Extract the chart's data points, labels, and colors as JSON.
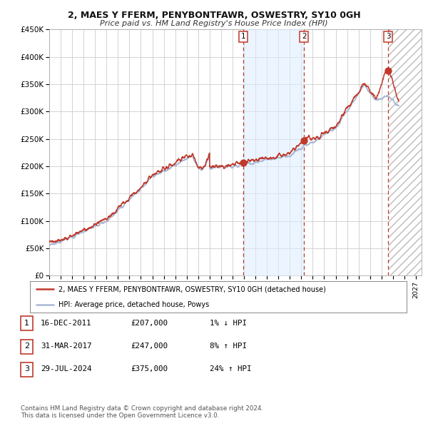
{
  "title": "2, MAES Y FFERM, PENYBONTFAWR, OSWESTRY, SY10 0GH",
  "subtitle": "Price paid vs. HM Land Registry's House Price Index (HPI)",
  "bg_color": "#ffffff",
  "plot_bg_color": "#ffffff",
  "grid_color": "#cccccc",
  "hpi_line_color": "#aab8d4",
  "price_line_color": "#c0392b",
  "sale_marker_color": "#c0392b",
  "dashed_line_color": "#c0392b",
  "shade_color": "#ddeeff",
  "ylim": [
    0,
    450000
  ],
  "yticks": [
    0,
    50000,
    100000,
    150000,
    200000,
    250000,
    300000,
    350000,
    400000,
    450000
  ],
  "ytick_labels": [
    "£0",
    "£50K",
    "£100K",
    "£150K",
    "£200K",
    "£250K",
    "£300K",
    "£350K",
    "£400K",
    "£450K"
  ],
  "xstart": 1995.0,
  "xend": 2027.5,
  "xtick_years": [
    1995,
    1996,
    1997,
    1998,
    1999,
    2000,
    2001,
    2002,
    2003,
    2004,
    2005,
    2006,
    2007,
    2008,
    2009,
    2010,
    2011,
    2012,
    2013,
    2014,
    2015,
    2016,
    2017,
    2018,
    2019,
    2020,
    2021,
    2022,
    2023,
    2024,
    2025,
    2026,
    2027
  ],
  "sale1_x": 2011.96,
  "sale1_y": 207000,
  "sale2_x": 2017.25,
  "sale2_y": 247000,
  "sale3_x": 2024.58,
  "sale3_y": 375000,
  "shade_x1": 2011.96,
  "shade_x2": 2017.25,
  "legend_house_label": "2, MAES Y FFERM, PENYBONTFAWR, OSWESTRY, SY10 0GH (detached house)",
  "legend_hpi_label": "HPI: Average price, detached house, Powys",
  "table_rows": [
    {
      "num": "1",
      "date": "16-DEC-2011",
      "price": "£207,000",
      "change": "1% ↓ HPI"
    },
    {
      "num": "2",
      "date": "31-MAR-2017",
      "price": "£247,000",
      "change": "8% ↑ HPI"
    },
    {
      "num": "3",
      "date": "29-JUL-2024",
      "price": "£375,000",
      "change": "24% ↑ HPI"
    }
  ],
  "footer": "Contains HM Land Registry data © Crown copyright and database right 2024.\nThis data is licensed under the Open Government Licence v3.0."
}
